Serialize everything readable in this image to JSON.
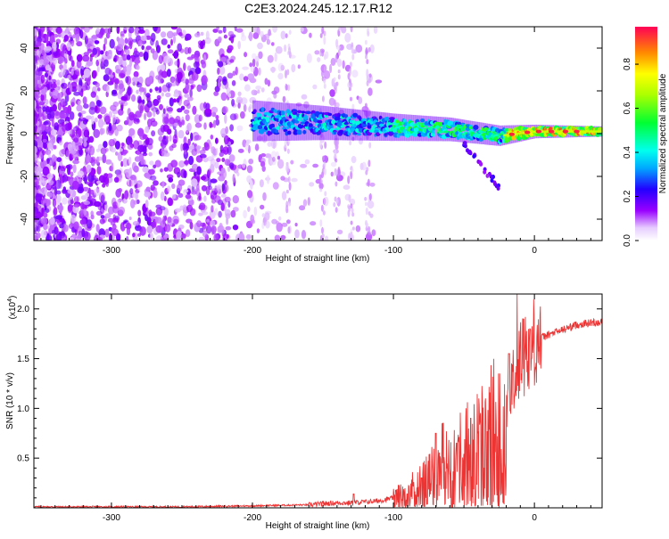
{
  "title": "C2E3.2024.245.12.17.R12",
  "chart_data": [
    {
      "type": "heatmap",
      "xlabel": "Height of straight line (km)",
      "ylabel": "Frequency (Hz)",
      "xlim": [
        -355,
        48
      ],
      "ylim": [
        -50,
        50
      ],
      "x_ticks": [
        -300,
        -200,
        -100,
        0
      ],
      "y_ticks": [
        -40,
        -20,
        0,
        20,
        40
      ],
      "colorbar": {
        "label": "Normalized spectral amplitude",
        "range": [
          0,
          0.97
        ],
        "ticks": [
          0.0,
          0.2,
          0.4,
          0.6,
          0.8
        ]
      },
      "features": {
        "noise_region_x": [
          -355,
          -110
        ],
        "signal_band_x": [
          -200,
          48
        ],
        "signal_band_center_freq": [
          [
            -200,
            6
          ],
          [
            -150,
            5
          ],
          [
            -100,
            3
          ],
          [
            -60,
            2
          ],
          [
            -25,
            -1
          ],
          [
            0,
            1
          ],
          [
            48,
            1
          ]
        ],
        "signal_band_halfwidth_hz": [
          [
            -200,
            6
          ],
          [
            -100,
            4
          ],
          [
            -25,
            3
          ],
          [
            0,
            2
          ],
          [
            48,
            1.5
          ]
        ],
        "secondary_branch": [
          [
            -50,
            -5
          ],
          [
            -25,
            -25
          ]
        ],
        "peak_amplitude_region_x": [
          -20,
          40
        ]
      }
    },
    {
      "type": "line",
      "xlabel": "Height of straight line (km)",
      "ylabel": "SNR (10 * v/v)",
      "y_multiplier_label": "(x10",
      "y_multiplier_exp": "4",
      "y_multiplier_close": ")",
      "xlim": [
        -355,
        48
      ],
      "ylim": [
        0,
        2.15
      ],
      "x_ticks": [
        -300,
        -200,
        -100,
        0
      ],
      "y_ticks": [
        0.5,
        1.0,
        1.5,
        2.0
      ],
      "series": [
        {
          "color": "#ee3333",
          "x": [
            -355,
            -300,
            -250,
            -200,
            -160,
            -150,
            -140,
            -130,
            -120,
            -110,
            -100,
            -90,
            -80,
            -70,
            -60,
            -50,
            -40,
            -30,
            -20,
            -15,
            -10,
            -5,
            0,
            10,
            20,
            30,
            40,
            48
          ],
          "y": [
            0.01,
            0.01,
            0.01,
            0.02,
            0.03,
            0.04,
            0.05,
            0.05,
            0.06,
            0.07,
            0.1,
            0.17,
            0.25,
            0.35,
            0.45,
            0.55,
            0.65,
            0.8,
            1.0,
            1.25,
            1.5,
            1.6,
            1.68,
            1.74,
            1.79,
            1.84,
            1.86,
            1.87
          ],
          "peaks": [
            [
              -150,
              0.07
            ],
            [
              -128,
              0.14
            ],
            [
              -80,
              0.3
            ],
            [
              -70,
              0.75
            ],
            [
              -65,
              0.85
            ],
            [
              -55,
              0.65
            ],
            [
              -45,
              0.9
            ],
            [
              -35,
              1.1
            ],
            [
              -25,
              1.35
            ],
            [
              -18,
              1.55
            ],
            [
              -12,
              2.15
            ],
            [
              -8,
              1.9
            ],
            [
              -3,
              1.8
            ]
          ]
        }
      ]
    }
  ]
}
